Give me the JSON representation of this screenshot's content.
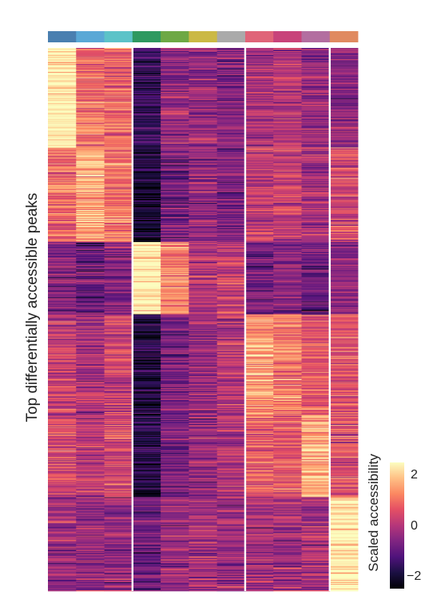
{
  "chart_data": {
    "type": "heatmap",
    "ylabel": "Top differentially accessible peaks",
    "colorbar": {
      "label": "Scaled accessibility",
      "ticks": [
        "2",
        "0",
        "−2"
      ],
      "tick_values": [
        2,
        0,
        -2
      ],
      "range": [
        -2.5,
        2.5
      ],
      "colormap": "magma"
    },
    "column_colors": [
      "#4a7fb0",
      "#5aa8d6",
      "#5cc3c8",
      "#2e9960",
      "#6ea845",
      "#cbb945",
      "#aaaaaa",
      "#e06478",
      "#c8437a",
      "#b36ea0",
      "#e08a60"
    ],
    "column_groups": [
      [
        0,
        2
      ],
      [
        3,
        6
      ],
      [
        7,
        9
      ],
      [
        10,
        10
      ]
    ],
    "row_blocks": [
      {
        "size": 124,
        "levels": [
          2.35,
          0.9,
          0.8,
          -1.5,
          -0.4,
          -0.3,
          -0.6,
          -0.1,
          0.0,
          -0.4,
          -0.5
        ]
      },
      {
        "size": 118,
        "levels": [
          0.9,
          1.6,
          1.0,
          -2.1,
          -0.8,
          -0.4,
          -0.7,
          0.1,
          0.2,
          -0.2,
          0.4
        ]
      },
      {
        "size": 90,
        "levels": [
          -0.7,
          -0.9,
          -0.7,
          2.35,
          1.2,
          0.0,
          0.2,
          -0.8,
          -0.6,
          -0.9,
          -0.5
        ]
      },
      {
        "size": 125,
        "levels": [
          0.2,
          -0.2,
          0.2,
          -1.9,
          -0.8,
          -0.4,
          -0.1,
          1.4,
          1.1,
          0.6,
          0.5
        ]
      },
      {
        "size": 103,
        "levels": [
          0.4,
          0.1,
          0.4,
          -1.8,
          -0.7,
          -0.3,
          0.0,
          0.7,
          0.7,
          1.7,
          0.6
        ]
      },
      {
        "size": 117,
        "levels": [
          -0.3,
          -0.4,
          -0.4,
          -0.9,
          -0.3,
          -0.2,
          -0.3,
          -0.2,
          -0.2,
          -0.1,
          2.4
        ]
      }
    ]
  }
}
